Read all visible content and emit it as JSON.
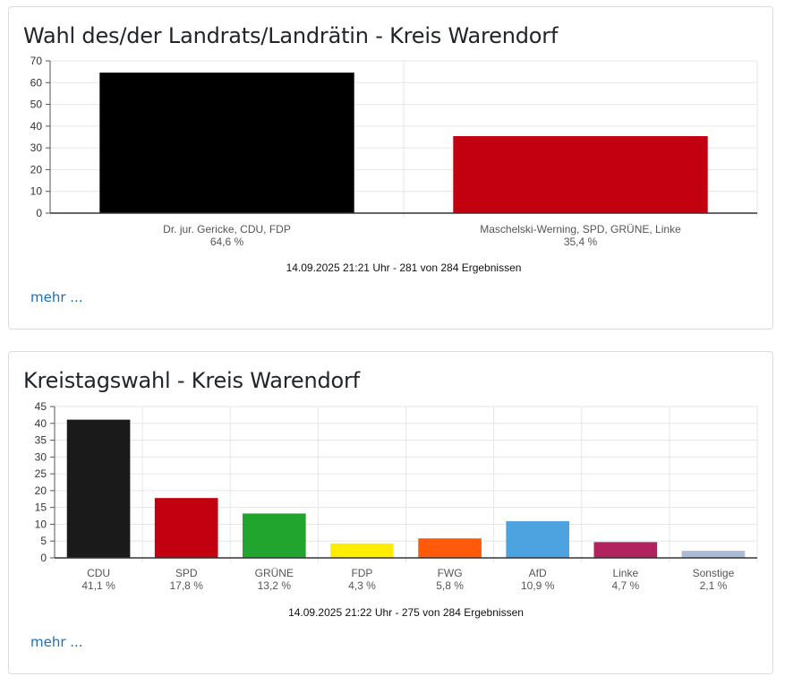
{
  "panels": [
    {
      "title": "Wahl des/der Landrats/Landrätin - Kreis Warendorf",
      "more_label": "mehr ...",
      "chart_data": {
        "type": "bar",
        "categories": [
          "Dr. jur. Gericke, CDU, FDP",
          "Maschelski-Werning, SPD, GRÜNE, Linke"
        ],
        "values": [
          64.6,
          35.4
        ],
        "value_labels": [
          "64,6 %",
          "35,4 %"
        ],
        "colors": [
          "#000000",
          "#c3000f"
        ],
        "ylim": [
          0,
          70
        ],
        "yticks": [
          0,
          10,
          20,
          30,
          40,
          50,
          60,
          70
        ],
        "grid": true,
        "footnote": "14.09.2025 21:21 Uhr - 281 von 284 Ergebnissen"
      }
    },
    {
      "title": "Kreistagswahl - Kreis Warendorf",
      "more_label": "mehr ...",
      "chart_data": {
        "type": "bar",
        "categories": [
          "CDU",
          "SPD",
          "GRÜNE",
          "FDP",
          "FWG",
          "AfD",
          "Linke",
          "Sonstige"
        ],
        "values": [
          41.1,
          17.8,
          13.2,
          4.3,
          5.8,
          10.9,
          4.7,
          2.1
        ],
        "value_labels": [
          "41,1 %",
          "17,8 %",
          "13,2 %",
          "4,3 %",
          "5,8 %",
          "10,9 %",
          "4,7 %",
          "2,1 %"
        ],
        "colors": [
          "#1a1a1a",
          "#c3000f",
          "#22a52f",
          "#ffed00",
          "#ff5a0a",
          "#4ca3e0",
          "#b0235f",
          "#aabbd6"
        ],
        "ylim": [
          0,
          45
        ],
        "yticks": [
          0,
          5,
          10,
          15,
          20,
          25,
          30,
          35,
          40,
          45
        ],
        "grid": true,
        "footnote": "14.09.2025 21:22 Uhr - 275 von 284 Ergebnissen"
      }
    }
  ]
}
